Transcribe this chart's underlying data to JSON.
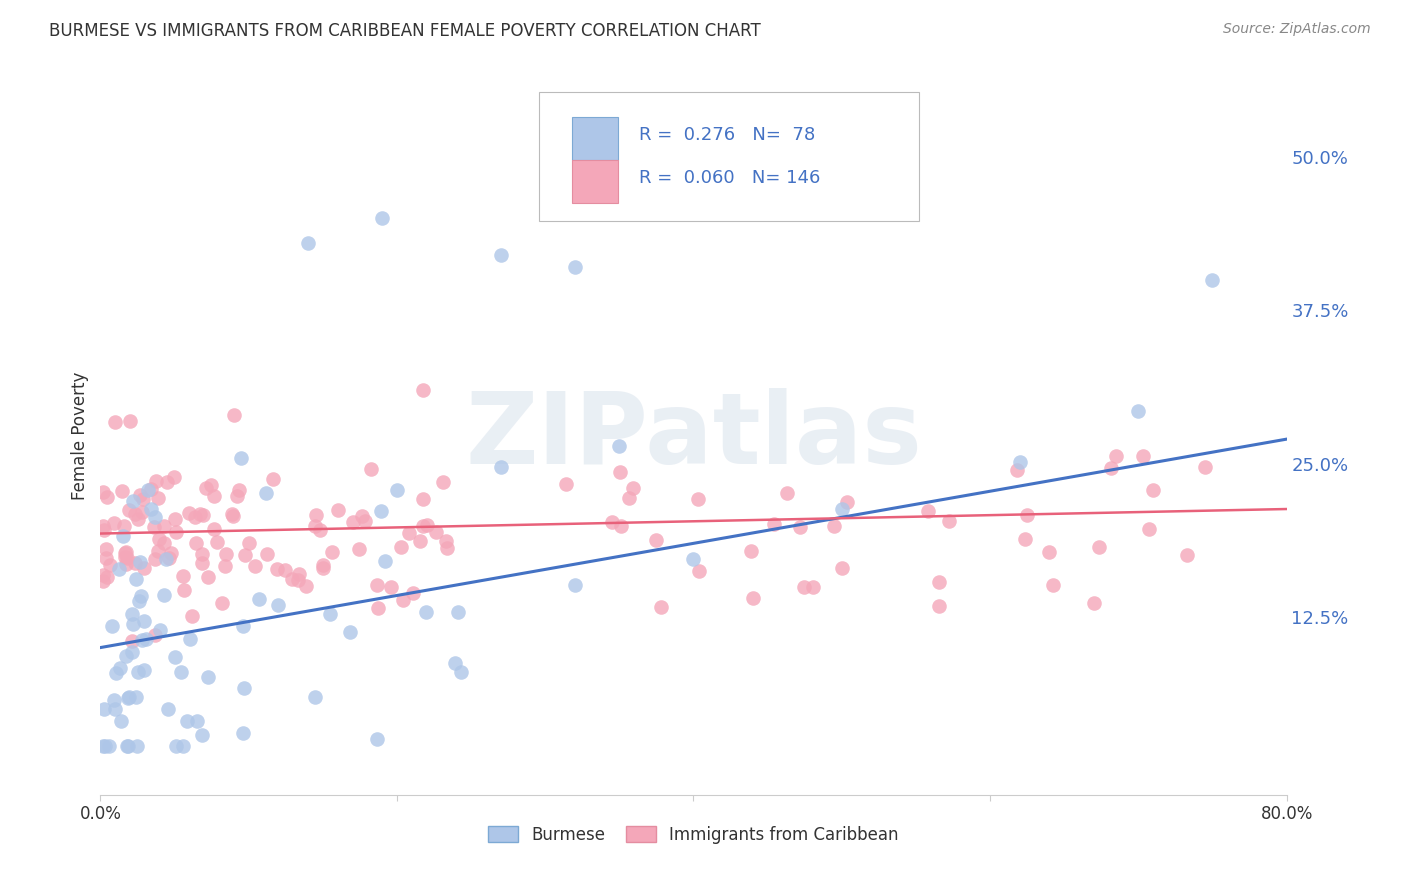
{
  "title": "BURMESE VS IMMIGRANTS FROM CARIBBEAN FEMALE POVERTY CORRELATION CHART",
  "source": "Source: ZipAtlas.com",
  "ylabel": "Female Poverty",
  "yticks": [
    0.125,
    0.25,
    0.375,
    0.5
  ],
  "ytick_labels": [
    "12.5%",
    "25.0%",
    "37.5%",
    "50.0%"
  ],
  "xlim": [
    0.0,
    0.8
  ],
  "ylim": [
    -0.02,
    0.565
  ],
  "burmese_R": 0.276,
  "burmese_N": 78,
  "caribbean_R": 0.06,
  "caribbean_N": 146,
  "burmese_color": "#aec6e8",
  "caribbean_color": "#f4a7b9",
  "burmese_line_color": "#4472C4",
  "caribbean_line_color": "#E8617A",
  "legend_label_1": "Burmese",
  "legend_label_2": "Immigrants from Caribbean",
  "watermark_text": "ZIPatlas",
  "background_color": "#ffffff",
  "grid_color": "#cccccc",
  "burmese_line_start_y": 0.1,
  "burmese_line_end_y": 0.27,
  "caribbean_line_start_y": 0.193,
  "caribbean_line_end_y": 0.213,
  "title_color": "#333333",
  "source_color": "#888888",
  "tick_label_color": "#4472C4"
}
